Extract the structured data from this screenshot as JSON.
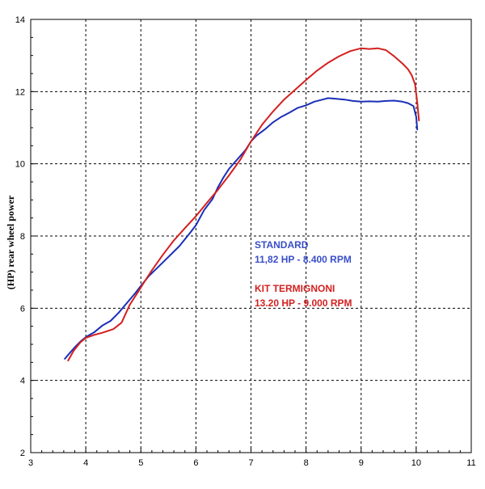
{
  "chart_data": {
    "type": "line",
    "title": "",
    "xlabel": "",
    "ylabel": "(HP) rear wheel power",
    "xlim": [
      3,
      11
    ],
    "ylim": [
      2,
      14
    ],
    "x_ticks": [
      3,
      4,
      5,
      6,
      7,
      8,
      9,
      10,
      11
    ],
    "y_ticks": [
      2,
      4,
      6,
      8,
      10,
      12,
      14
    ],
    "x_tick_labels": [
      "3",
      "4",
      "5",
      "6",
      "7",
      "8",
      "9",
      "10",
      "11"
    ],
    "y_tick_labels": [
      "2",
      "4",
      "6",
      "8",
      "10",
      "12",
      "14"
    ],
    "grid": true,
    "grid_style": "dashed",
    "legend": "none",
    "series": [
      {
        "name": "STANDARD",
        "color": "#1a2fb8",
        "x": [
          3.62,
          3.72,
          3.82,
          3.92,
          4.02,
          4.15,
          4.3,
          4.45,
          4.6,
          4.75,
          4.9,
          5.0,
          5.15,
          5.3,
          5.5,
          5.7,
          5.9,
          6.0,
          6.15,
          6.3,
          6.4,
          6.5,
          6.6,
          6.75,
          6.9,
          7.0,
          7.1,
          7.25,
          7.4,
          7.55,
          7.7,
          7.85,
          8.0,
          8.15,
          8.3,
          8.4,
          8.55,
          8.7,
          8.85,
          9.0,
          9.15,
          9.3,
          9.45,
          9.6,
          9.75,
          9.85,
          9.95,
          10.0,
          10.02
        ],
        "y": [
          4.6,
          4.78,
          4.95,
          5.1,
          5.22,
          5.33,
          5.52,
          5.65,
          5.88,
          6.15,
          6.42,
          6.62,
          6.9,
          7.12,
          7.42,
          7.72,
          8.1,
          8.3,
          8.72,
          9.02,
          9.35,
          9.62,
          9.86,
          10.12,
          10.38,
          10.62,
          10.78,
          10.95,
          11.15,
          11.3,
          11.42,
          11.55,
          11.62,
          11.72,
          11.78,
          11.82,
          11.8,
          11.78,
          11.74,
          11.72,
          11.73,
          11.72,
          11.74,
          11.75,
          11.72,
          11.68,
          11.6,
          11.3,
          10.95
        ]
      },
      {
        "name": "KIT TERMIGNONI",
        "color": "#d42020",
        "x": [
          3.68,
          3.78,
          3.9,
          4.0,
          4.15,
          4.3,
          4.5,
          4.65,
          4.8,
          4.95,
          5.05,
          5.2,
          5.4,
          5.6,
          5.8,
          6.0,
          6.2,
          6.4,
          6.6,
          6.8,
          7.0,
          7.2,
          7.4,
          7.6,
          7.8,
          8.0,
          8.2,
          8.4,
          8.6,
          8.8,
          9.0,
          9.15,
          9.3,
          9.45,
          9.6,
          9.75,
          9.85,
          9.92,
          9.98,
          10.02,
          10.05
        ],
        "y": [
          4.55,
          4.82,
          5.05,
          5.18,
          5.26,
          5.32,
          5.42,
          5.6,
          6.1,
          6.45,
          6.7,
          7.05,
          7.48,
          7.88,
          8.22,
          8.55,
          8.92,
          9.28,
          9.68,
          10.1,
          10.62,
          11.08,
          11.45,
          11.78,
          12.05,
          12.32,
          12.58,
          12.8,
          12.98,
          13.12,
          13.2,
          13.18,
          13.2,
          13.15,
          12.98,
          12.78,
          12.62,
          12.45,
          12.2,
          11.7,
          11.2
        ]
      }
    ],
    "annotations": [
      {
        "lines": [
          "STANDARD",
          "11,82 HP - 8.400 RPM"
        ],
        "color": "#3a4fc8"
      },
      {
        "lines": [
          "KIT TERMIGNONI",
          "13.20 HP - 9.000 RPM"
        ],
        "color": "#d42020"
      }
    ]
  }
}
